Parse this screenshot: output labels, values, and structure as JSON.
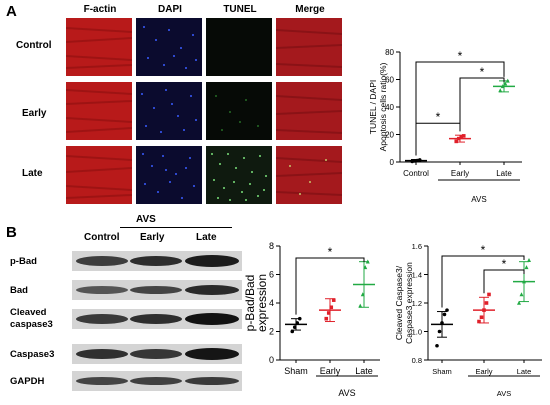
{
  "panel_a": {
    "letter": "A",
    "column_headers": [
      "F-actin",
      "DAPI",
      "TUNEL",
      "Merge"
    ],
    "row_labels": [
      "Control",
      "Early",
      "Late"
    ],
    "colors": {
      "factin": "#b81a1a",
      "dapi_bg": "#0b0b2e",
      "tunel_bg": "#060a06",
      "merge": "#a4191d"
    }
  },
  "panel_b": {
    "letter": "B",
    "group_header": "AVS",
    "lane_headers": [
      "Control",
      "Early",
      "Late"
    ],
    "blot_labels": [
      "p-Bad",
      "Bad",
      "Cleaved caspase3",
      "Caspase3",
      "GAPDH"
    ]
  },
  "chart_data": [
    {
      "type": "scatter",
      "ylabel": "TUNEL / DAPI Apoptosis cells ratio(%)",
      "categories": [
        "Control",
        "Early",
        "Late"
      ],
      "group_label": "AVS",
      "ylim": [
        0,
        80
      ],
      "yticks": [
        "0",
        "20",
        "40",
        "60",
        "80"
      ],
      "colors": [
        "#000000",
        "#e0202a",
        "#22aa44"
      ],
      "mean": [
        1,
        17,
        55
      ],
      "sd": [
        0.8,
        2.5,
        4
      ],
      "points": [
        [
          0.4,
          0.8,
          1.1,
          1.5
        ],
        [
          15,
          17,
          18,
          19
        ],
        [
          52,
          55,
          57,
          59
        ]
      ],
      "significance": "*"
    },
    {
      "type": "scatter",
      "ylabel": "p-Bad/Bad expression",
      "categories": [
        "Sham",
        "Early",
        "Late"
      ],
      "group_label": "AVS",
      "ylim": [
        0,
        8
      ],
      "yticks": [
        "0",
        "2",
        "4",
        "6",
        "8"
      ],
      "colors": [
        "#000000",
        "#e0202a",
        "#22aa44"
      ],
      "mean": [
        2.5,
        3.5,
        5.3
      ],
      "sd": [
        0.4,
        0.8,
        1.6
      ],
      "points": [
        [
          2.0,
          2.3,
          2.6,
          2.9
        ],
        [
          2.9,
          3.3,
          3.7,
          4.2
        ],
        [
          3.8,
          4.6,
          6.5,
          6.9
        ]
      ],
      "significance": "*"
    },
    {
      "type": "scatter",
      "ylabel": "Cleaved Caspase3/ Caspase3 expression",
      "categories": [
        "Sham",
        "Early",
        "Late"
      ],
      "group_label": "AVS",
      "ylim": [
        0.8,
        1.6
      ],
      "yticks": [
        "0.8",
        "1.0",
        "1.2",
        "1.4",
        "1.6"
      ],
      "colors": [
        "#000000",
        "#e0202a",
        "#22aa44"
      ],
      "mean": [
        1.05,
        1.15,
        1.35
      ],
      "sd": [
        0.09,
        0.09,
        0.14
      ],
      "points": [
        [
          0.9,
          1.0,
          1.06,
          1.12,
          1.15
        ],
        [
          1.07,
          1.1,
          1.15,
          1.2,
          1.26
        ],
        [
          1.2,
          1.26,
          1.35,
          1.45,
          1.5
        ]
      ],
      "significance": "*"
    }
  ]
}
